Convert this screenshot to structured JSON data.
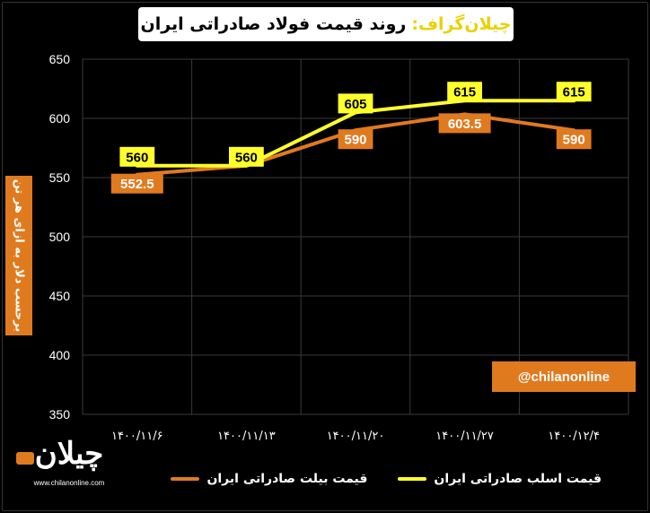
{
  "title": {
    "brand": "چیلان‌گراف:",
    "text": "روند قیمت فولاد صادراتی ایران"
  },
  "watermark": "@chilanonline",
  "logo": {
    "mark": "چیلان",
    "url": "www.chilanonline.com"
  },
  "colors": {
    "orange": "#e07a1f",
    "yellow": "#ffff2a",
    "background": "#000000",
    "grid": "#3a3a3a"
  },
  "chart_data": {
    "type": "line",
    "ylabel": "برحسب دلار به ازای هر تن",
    "xlabel": "",
    "categories": [
      "۱۴۰۰/۱۱/۶",
      "۱۴۰۰/۱۱/۱۳",
      "۱۴۰۰/۱۱/۲۰",
      "۱۴۰۰/۱۱/۲۷",
      "۱۴۰۰/۱۲/۴"
    ],
    "ylim": [
      350,
      650
    ],
    "yticks": [
      350,
      400,
      450,
      500,
      550,
      600,
      650
    ],
    "grid": true,
    "legend_position": "bottom",
    "series": [
      {
        "name": "قیمت بیلت صادراتی ایران",
        "color": "#e07a1f",
        "values": [
          552.5,
          560,
          590,
          603.5,
          590
        ],
        "labels": [
          "552.5",
          "",
          "590",
          "603.5",
          "590"
        ]
      },
      {
        "name": "قیمت اسلب صادراتی ایران",
        "color": "#ffff2a",
        "values": [
          560,
          560,
          605,
          615,
          615
        ],
        "labels": [
          "560",
          "560",
          "605",
          "615",
          "615"
        ]
      }
    ]
  }
}
